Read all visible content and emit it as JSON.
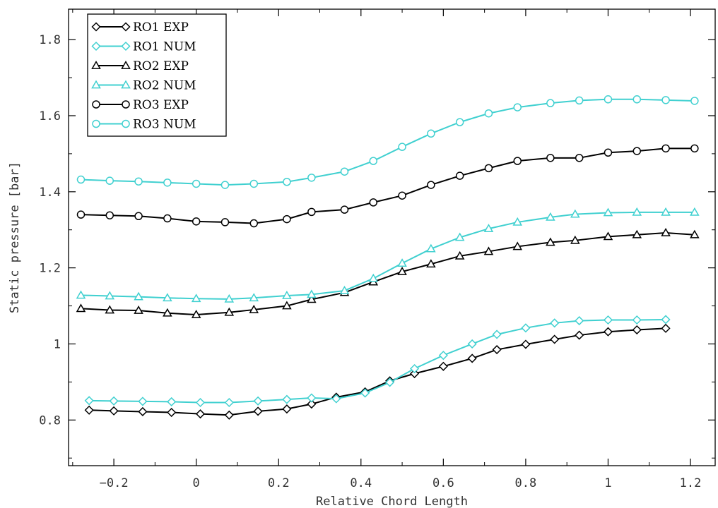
{
  "chart_data": {
    "type": "line",
    "title": "",
    "xlabel": "Relative Chord Length",
    "ylabel": "Static pressure [bar]",
    "xlim": [
      -0.31,
      1.26
    ],
    "ylim": [
      0.68,
      1.88
    ],
    "xticks": [
      -0.2,
      0,
      0.2,
      0.4,
      0.6,
      0.8,
      1,
      1.2
    ],
    "xtick_labels": [
      "−0.2",
      "0",
      "0.2",
      "0.4",
      "0.6",
      "0.8",
      "1",
      "1.2"
    ],
    "yticks": [
      0.8,
      1.0,
      1.2,
      1.4,
      1.6,
      1.8
    ],
    "ytick_labels": [
      "0.8",
      "1",
      "1.2",
      "1.4",
      "1.6",
      "1.8"
    ],
    "grid": false,
    "legend_position": "top-left",
    "colors": {
      "exp": "#000000",
      "num": "#40d0d0"
    },
    "series": [
      {
        "name": "RO1 EXP",
        "marker": "diamond",
        "color": "exp",
        "x": [
          -0.26,
          -0.2,
          -0.13,
          -0.06,
          0.01,
          0.08,
          0.15,
          0.22,
          0.28,
          0.34,
          0.41,
          0.47,
          0.53,
          0.6,
          0.67,
          0.73,
          0.8,
          0.87,
          0.93,
          1.0,
          1.07,
          1.14
        ],
        "y": [
          0.826,
          0.824,
          0.822,
          0.82,
          0.816,
          0.813,
          0.823,
          0.829,
          0.842,
          0.86,
          0.874,
          0.903,
          0.922,
          0.941,
          0.962,
          0.985,
          0.999,
          1.012,
          1.023,
          1.032,
          1.037,
          1.041
        ]
      },
      {
        "name": "RO1 NUM",
        "marker": "diamond",
        "color": "num",
        "x": [
          -0.26,
          -0.2,
          -0.13,
          -0.06,
          0.01,
          0.08,
          0.15,
          0.22,
          0.28,
          0.34,
          0.41,
          0.47,
          0.53,
          0.6,
          0.67,
          0.73,
          0.8,
          0.87,
          0.93,
          1.0,
          1.07,
          1.14
        ],
        "y": [
          0.851,
          0.85,
          0.849,
          0.848,
          0.846,
          0.846,
          0.85,
          0.854,
          0.858,
          0.856,
          0.871,
          0.899,
          0.935,
          0.97,
          1.0,
          1.025,
          1.042,
          1.055,
          1.061,
          1.063,
          1.063,
          1.064
        ]
      },
      {
        "name": "RO2 EXP",
        "marker": "triangle",
        "color": "exp",
        "x": [
          -0.28,
          -0.21,
          -0.14,
          -0.07,
          0.0,
          0.08,
          0.14,
          0.22,
          0.28,
          0.36,
          0.43,
          0.5,
          0.57,
          0.64,
          0.71,
          0.78,
          0.86,
          0.92,
          1.0,
          1.07,
          1.14,
          1.21
        ],
        "y": [
          1.093,
          1.089,
          1.088,
          1.081,
          1.077,
          1.083,
          1.09,
          1.1,
          1.117,
          1.135,
          1.163,
          1.19,
          1.21,
          1.231,
          1.243,
          1.256,
          1.267,
          1.272,
          1.282,
          1.287,
          1.292,
          1.287
        ]
      },
      {
        "name": "RO2 NUM",
        "marker": "triangle",
        "color": "num",
        "x": [
          -0.28,
          -0.21,
          -0.14,
          -0.07,
          0.0,
          0.08,
          0.14,
          0.22,
          0.28,
          0.36,
          0.43,
          0.5,
          0.57,
          0.64,
          0.71,
          0.78,
          0.86,
          0.92,
          1.0,
          1.07,
          1.14,
          1.21
        ],
        "y": [
          1.128,
          1.126,
          1.124,
          1.121,
          1.119,
          1.118,
          1.121,
          1.127,
          1.13,
          1.14,
          1.172,
          1.212,
          1.25,
          1.28,
          1.303,
          1.32,
          1.333,
          1.341,
          1.345,
          1.346,
          1.346,
          1.346
        ]
      },
      {
        "name": "RO3 EXP",
        "marker": "circle",
        "color": "exp",
        "x": [
          -0.28,
          -0.21,
          -0.14,
          -0.07,
          0.0,
          0.07,
          0.14,
          0.22,
          0.28,
          0.36,
          0.43,
          0.5,
          0.57,
          0.64,
          0.71,
          0.78,
          0.86,
          0.93,
          1.0,
          1.07,
          1.14,
          1.21
        ],
        "y": [
          1.34,
          1.338,
          1.336,
          1.33,
          1.322,
          1.32,
          1.317,
          1.328,
          1.347,
          1.353,
          1.372,
          1.39,
          1.418,
          1.442,
          1.462,
          1.481,
          1.489,
          1.489,
          1.503,
          1.507,
          1.514,
          1.514
        ]
      },
      {
        "name": "RO3 NUM",
        "marker": "circle",
        "color": "num",
        "x": [
          -0.28,
          -0.21,
          -0.14,
          -0.07,
          0.0,
          0.07,
          0.14,
          0.22,
          0.28,
          0.36,
          0.43,
          0.5,
          0.57,
          0.64,
          0.71,
          0.78,
          0.86,
          0.93,
          1.0,
          1.07,
          1.14,
          1.21
        ],
        "y": [
          1.432,
          1.429,
          1.427,
          1.424,
          1.421,
          1.418,
          1.421,
          1.426,
          1.437,
          1.453,
          1.481,
          1.518,
          1.553,
          1.583,
          1.606,
          1.622,
          1.633,
          1.64,
          1.643,
          1.643,
          1.641,
          1.639
        ]
      }
    ]
  }
}
